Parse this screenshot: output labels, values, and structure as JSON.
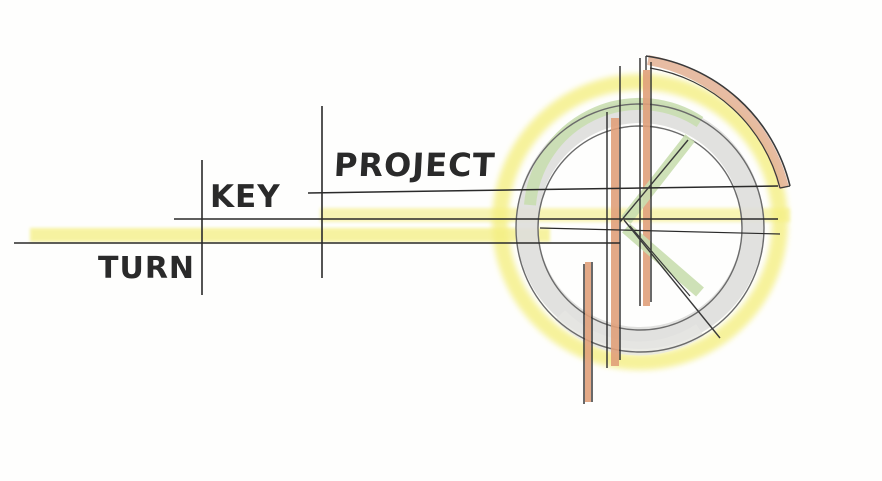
{
  "logo": {
    "words": {
      "project": "PROJECT",
      "key": "KEY",
      "turn": "TURN"
    },
    "colors": {
      "ink": "#2a2a2a",
      "highlight_yellow": "#f4ef82",
      "orange": "#e1a47a",
      "green": "#c6dcae",
      "gray": "#d8d8d6"
    },
    "icon": "circle-k-monogram"
  }
}
